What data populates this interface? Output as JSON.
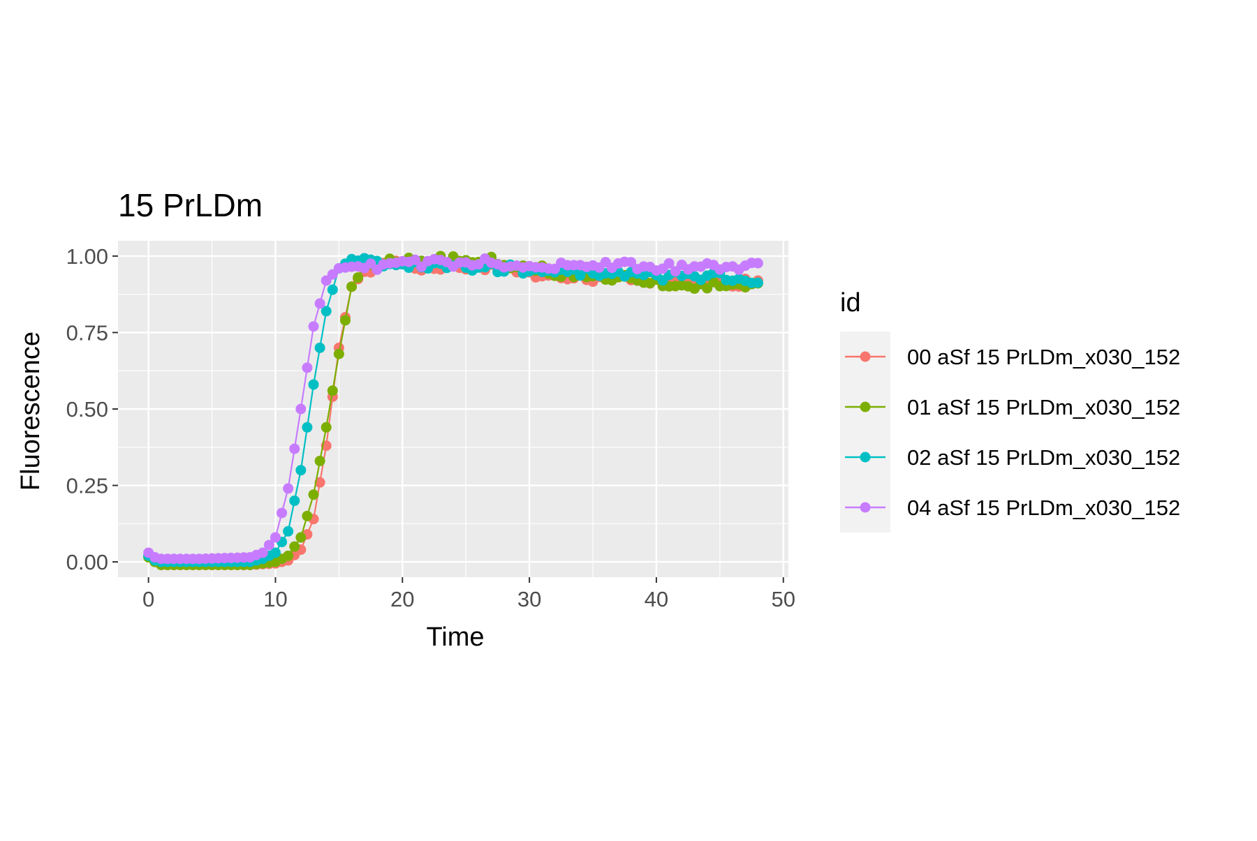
{
  "chart_data": {
    "type": "line",
    "title": "15 PrLDm",
    "xlabel": "Time",
    "ylabel": "Fluorescence",
    "xlim": [
      -2.4,
      50.4
    ],
    "ylim": [
      -0.05,
      1.05
    ],
    "xticks": [
      0,
      10,
      20,
      30,
      40,
      50
    ],
    "xtick_labels": [
      "0",
      "10",
      "20",
      "30",
      "40",
      "50"
    ],
    "yticks": [
      0,
      0.25,
      0.5,
      0.75,
      1
    ],
    "ytick_labels": [
      "0.00",
      "0.25",
      "0.50",
      "0.75",
      "1.00"
    ],
    "grid": true,
    "panel_background": "#EBEBEB",
    "legend": {
      "title": "id",
      "position": "right"
    },
    "sample_interval": 0.5,
    "x_start": 0,
    "x_end": 48,
    "series": [
      {
        "name": "00 aSf 15 PrLDm_x030_152",
        "color": "#F8766D",
        "keypoints": [
          [
            0,
            0.02
          ],
          [
            0.5,
            0
          ],
          [
            1,
            -0.01
          ],
          [
            4,
            -0.01
          ],
          [
            8,
            -0.01
          ],
          [
            10,
            -0.005
          ],
          [
            11,
            0.005
          ],
          [
            12,
            0.04
          ],
          [
            13,
            0.14
          ],
          [
            14,
            0.38
          ],
          [
            15,
            0.7
          ],
          [
            16,
            0.9
          ],
          [
            17,
            0.95
          ],
          [
            18,
            0.97
          ],
          [
            20,
            0.97
          ],
          [
            25,
            0.96
          ],
          [
            28,
            0.96
          ],
          [
            30,
            0.94
          ],
          [
            35,
            0.925
          ],
          [
            40,
            0.92
          ],
          [
            45,
            0.915
          ],
          [
            48,
            0.91
          ]
        ]
      },
      {
        "name": "01 aSf 15 PrLDm_x030_152",
        "color": "#7CAE00",
        "keypoints": [
          [
            0,
            0.015
          ],
          [
            0.5,
            0
          ],
          [
            1,
            -0.01
          ],
          [
            4,
            -0.01
          ],
          [
            8,
            -0.01
          ],
          [
            10,
            0
          ],
          [
            11,
            0.02
          ],
          [
            12,
            0.08
          ],
          [
            13,
            0.22
          ],
          [
            14,
            0.44
          ],
          [
            15,
            0.68
          ],
          [
            16,
            0.9
          ],
          [
            17,
            0.96
          ],
          [
            18,
            0.98
          ],
          [
            20,
            0.985
          ],
          [
            24,
            0.99
          ],
          [
            27,
            0.985
          ],
          [
            30,
            0.96
          ],
          [
            35,
            0.935
          ],
          [
            40,
            0.91
          ],
          [
            45,
            0.9
          ],
          [
            48,
            0.9
          ]
        ]
      },
      {
        "name": "02 aSf 15 PrLDm_x030_152",
        "color": "#00BFC4",
        "keypoints": [
          [
            0,
            0.02
          ],
          [
            0.5,
            0.005
          ],
          [
            1,
            0
          ],
          [
            4,
            0
          ],
          [
            8,
            0
          ],
          [
            9,
            0.01
          ],
          [
            10,
            0.03
          ],
          [
            11,
            0.1
          ],
          [
            12,
            0.3
          ],
          [
            13,
            0.58
          ],
          [
            14,
            0.82
          ],
          [
            15,
            0.96
          ],
          [
            16,
            0.99
          ],
          [
            17,
            0.98
          ],
          [
            20,
            0.97
          ],
          [
            25,
            0.965
          ],
          [
            30,
            0.955
          ],
          [
            35,
            0.945
          ],
          [
            40,
            0.935
          ],
          [
            45,
            0.93
          ],
          [
            48,
            0.925
          ]
        ]
      },
      {
        "name": "04 aSf 15 PrLDm_x030_152",
        "color": "#C77CFF",
        "keypoints": [
          [
            0,
            0.03
          ],
          [
            0.5,
            0.015
          ],
          [
            1,
            0.01
          ],
          [
            4,
            0.01
          ],
          [
            8,
            0.015
          ],
          [
            9,
            0.03
          ],
          [
            10,
            0.08
          ],
          [
            11,
            0.24
          ],
          [
            12,
            0.5
          ],
          [
            13,
            0.77
          ],
          [
            14,
            0.92
          ],
          [
            15,
            0.96
          ],
          [
            16,
            0.965
          ],
          [
            18,
            0.97
          ],
          [
            20,
            0.975
          ],
          [
            25,
            0.98
          ],
          [
            30,
            0.97
          ],
          [
            35,
            0.97
          ],
          [
            40,
            0.965
          ],
          [
            45,
            0.965
          ],
          [
            48,
            0.965
          ]
        ]
      }
    ]
  }
}
